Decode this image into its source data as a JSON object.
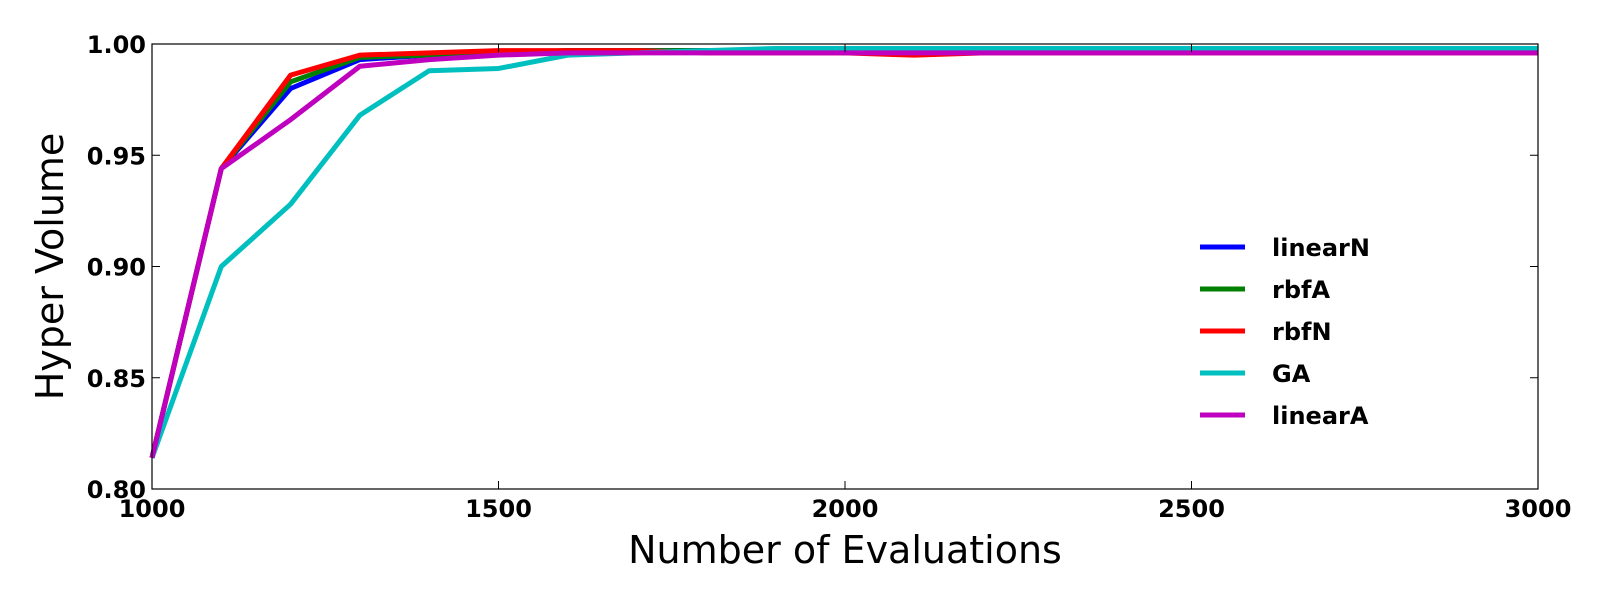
{
  "chart_data": {
    "type": "line",
    "title": "",
    "xlabel": "Number of Evaluations",
    "ylabel": "Hyper Volume",
    "xlim": [
      1000,
      3000
    ],
    "ylim": [
      0.8,
      1.0
    ],
    "xticks": [
      "1000",
      "1500",
      "2000",
      "2500",
      "3000"
    ],
    "yticks": [
      "0.80",
      "0.85",
      "0.90",
      "0.95",
      "1.00"
    ],
    "grid": false,
    "legend_position": "right",
    "x": [
      1000,
      1100,
      1200,
      1300,
      1400,
      1500,
      1600,
      1700,
      1800,
      1900,
      2000,
      2100,
      2200,
      2300,
      2400,
      2500,
      2600,
      2700,
      2800,
      2900,
      3000
    ],
    "series": [
      {
        "name": "linearN",
        "color": "#0000ff",
        "values": [
          0.814,
          0.944,
          0.98,
          0.993,
          0.995,
          0.996,
          0.997,
          0.997,
          0.997,
          0.997,
          0.997,
          0.997,
          0.997,
          0.997,
          0.997,
          0.997,
          0.997,
          0.997,
          0.997,
          0.997,
          0.997
        ]
      },
      {
        "name": "rbfA",
        "color": "#008000",
        "values": [
          0.814,
          0.944,
          0.983,
          0.994,
          0.995,
          0.996,
          0.997,
          0.997,
          0.997,
          0.997,
          0.997,
          0.997,
          0.997,
          0.997,
          0.997,
          0.997,
          0.997,
          0.997,
          0.997,
          0.997,
          0.997
        ]
      },
      {
        "name": "rbfN",
        "color": "#ff0000",
        "values": [
          0.814,
          0.944,
          0.986,
          0.995,
          0.996,
          0.997,
          0.997,
          0.997,
          0.996,
          0.996,
          0.996,
          0.995,
          0.996,
          0.996,
          0.996,
          0.996,
          0.996,
          0.996,
          0.996,
          0.996,
          0.996
        ]
      },
      {
        "name": "GA",
        "color": "#00bfbf",
        "values": [
          0.814,
          0.9,
          0.928,
          0.968,
          0.988,
          0.989,
          0.995,
          0.996,
          0.997,
          0.998,
          0.998,
          0.998,
          0.998,
          0.998,
          0.998,
          0.998,
          0.998,
          0.998,
          0.998,
          0.998,
          0.998
        ]
      },
      {
        "name": "linearA",
        "color": "#bf00bf",
        "values": [
          0.814,
          0.944,
          0.966,
          0.99,
          0.993,
          0.995,
          0.996,
          0.996,
          0.996,
          0.996,
          0.996,
          0.996,
          0.996,
          0.996,
          0.996,
          0.996,
          0.996,
          0.996,
          0.996,
          0.996,
          0.996
        ]
      }
    ]
  }
}
